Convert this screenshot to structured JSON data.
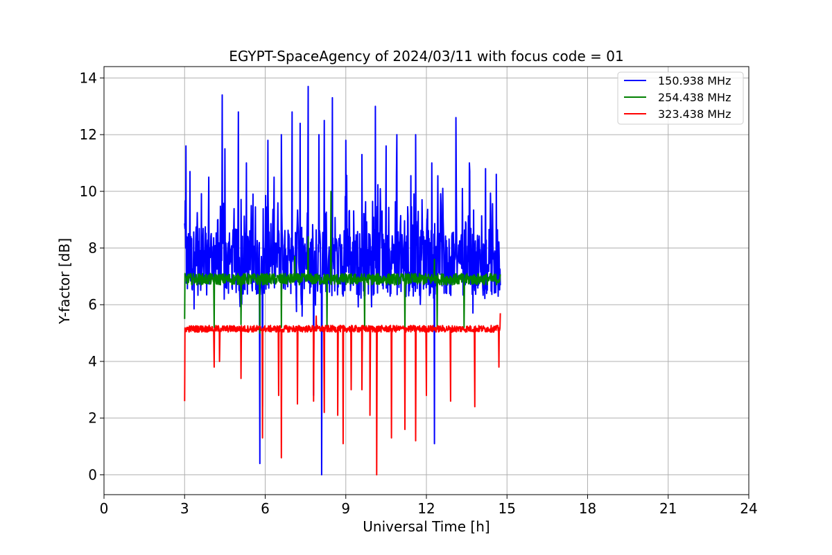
{
  "chart_data": {
    "type": "line",
    "title": "EGYPT-SpaceAgency of 2024/03/11 with focus code = 01",
    "xlabel": "Universal Time [h]",
    "ylabel": "Y-factor [dB]",
    "xlim": [
      0,
      24
    ],
    "ylim": [
      -0.7,
      14.4
    ],
    "xticks": [
      "0",
      "3",
      "6",
      "9",
      "12",
      "15",
      "18",
      "21",
      "24"
    ],
    "yticks": [
      "0",
      "2",
      "4",
      "6",
      "8",
      "10",
      "12",
      "14"
    ],
    "grid": true,
    "legend_position": "top-right",
    "series": [
      {
        "name": "150.938 MHz",
        "color": "#0000ff",
        "x_range": [
          3.0,
          14.75
        ],
        "baseline": 7.5,
        "noise": 1.2,
        "spikes_up": [
          [
            3.05,
            11.6
          ],
          [
            3.2,
            10.7
          ],
          [
            3.9,
            10.5
          ],
          [
            4.4,
            13.4
          ],
          [
            4.5,
            11.5
          ],
          [
            5.0,
            12.8
          ],
          [
            5.3,
            11.0
          ],
          [
            5.9,
            12.5
          ],
          [
            6.1,
            11.8
          ],
          [
            6.6,
            12.0
          ],
          [
            7.0,
            12.8
          ],
          [
            7.3,
            12.4
          ],
          [
            7.6,
            13.7
          ],
          [
            8.0,
            12.0
          ],
          [
            8.2,
            12.5
          ],
          [
            8.5,
            13.3
          ],
          [
            9.0,
            11.8
          ],
          [
            9.6,
            11.3
          ],
          [
            10.1,
            13.0
          ],
          [
            10.5,
            11.6
          ],
          [
            10.9,
            12.0
          ],
          [
            11.6,
            12.0
          ],
          [
            12.2,
            11.0
          ],
          [
            13.1,
            12.6
          ],
          [
            13.6,
            11.0
          ],
          [
            14.2,
            10.8
          ],
          [
            14.6,
            10.6
          ]
        ],
        "spikes_down": [
          [
            5.8,
            0.4
          ],
          [
            8.1,
            0.0
          ],
          [
            12.3,
            1.1
          ],
          [
            5.9,
            2.4
          ],
          [
            7.8,
            2.8
          ]
        ]
      },
      {
        "name": "254.438 MHz",
        "color": "#008000",
        "x_range": [
          3.0,
          14.75
        ],
        "baseline": 6.9,
        "noise": 0.2,
        "spikes_up": [
          [
            8.45,
            10.0
          ],
          [
            7.6,
            8.4
          ],
          [
            7.1,
            7.7
          ],
          [
            12.3,
            7.6
          ]
        ],
        "spikes_down": [
          [
            3.0,
            5.5
          ],
          [
            4.1,
            5.2
          ],
          [
            5.1,
            5.3
          ],
          [
            5.8,
            5.0
          ],
          [
            6.6,
            5.2
          ],
          [
            8.3,
            5.2
          ],
          [
            9.7,
            5.1
          ],
          [
            11.2,
            5.0
          ],
          [
            12.4,
            5.2
          ],
          [
            13.4,
            5.2
          ]
        ]
      },
      {
        "name": "323.438 MHz",
        "color": "#ff0000",
        "x_range": [
          3.0,
          14.75
        ],
        "baseline": 5.15,
        "noise": 0.12,
        "spikes_up": [
          [
            14.75,
            5.7
          ],
          [
            7.9,
            5.6
          ]
        ],
        "spikes_down": [
          [
            3.0,
            2.6
          ],
          [
            4.1,
            3.8
          ],
          [
            4.3,
            4.0
          ],
          [
            5.1,
            3.4
          ],
          [
            5.9,
            1.3
          ],
          [
            6.5,
            2.8
          ],
          [
            6.6,
            0.6
          ],
          [
            7.2,
            2.5
          ],
          [
            7.8,
            2.6
          ],
          [
            8.2,
            2.2
          ],
          [
            8.7,
            2.1
          ],
          [
            8.9,
            1.1
          ],
          [
            9.2,
            3.0
          ],
          [
            9.6,
            3.0
          ],
          [
            9.9,
            2.1
          ],
          [
            10.15,
            0.0
          ],
          [
            10.7,
            1.3
          ],
          [
            11.2,
            1.6
          ],
          [
            11.6,
            1.2
          ],
          [
            12.0,
            2.8
          ],
          [
            12.9,
            2.6
          ],
          [
            13.8,
            2.4
          ],
          [
            14.7,
            3.8
          ]
        ]
      }
    ]
  }
}
